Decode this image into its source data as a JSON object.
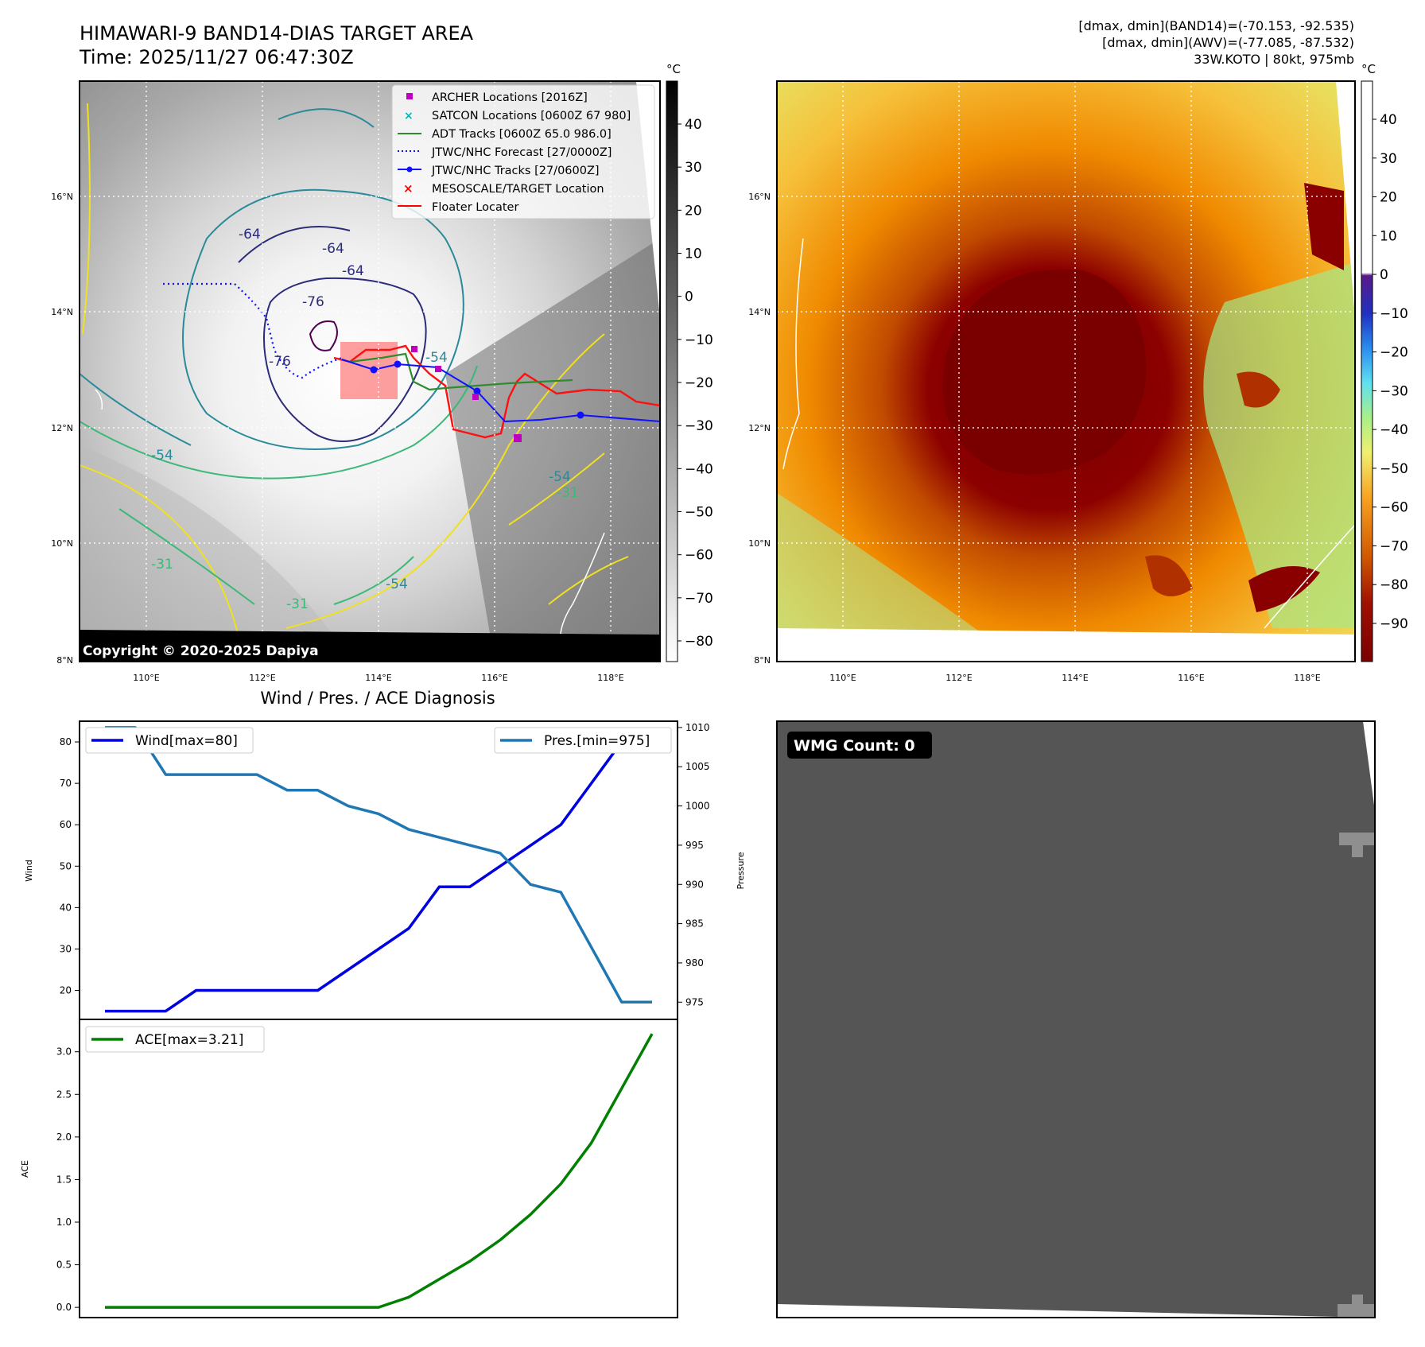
{
  "header": {
    "title": "HIMAWARI-9 BAND14-DIAS TARGET AREA",
    "time": "Time: 2025/11/27 06:47:30Z",
    "info_line1": "[dmax, dmin](BAND14)=(-70.153, -92.535)",
    "info_line2": "[dmax, dmin](AWV)=(-77.085, -87.532)",
    "info_line3": "33W.KOTO | 80kt, 975mb"
  },
  "copyright": "Copyright © 2020-2025 Dapiya",
  "map": {
    "lon_ticks": [
      "110°E",
      "112°E",
      "114°E",
      "116°E",
      "118°E"
    ],
    "lat_ticks": [
      "16°N",
      "14°N",
      "12°N",
      "10°N",
      "8°N"
    ],
    "contour_labels": [
      "-64",
      "-64",
      "-64",
      "-76",
      "-76",
      "-54",
      "-54",
      "-54",
      "-31",
      "-31",
      "-31",
      "-54"
    ],
    "legend": [
      {
        "label": "ARCHER Locations [2016Z]",
        "color": "#c000c0",
        "marker": "square"
      },
      {
        "label": "SATCON Locations [0600Z 67 980]",
        "color": "#00b8b8",
        "marker": "x"
      },
      {
        "label": "ADT Tracks [0600Z 65.0 986.0]",
        "color": "#2e8b2e",
        "marker": "line"
      },
      {
        "label": "JTWC/NHC Forecast [27/0000Z]",
        "color": "#1010ff",
        "marker": "dotted"
      },
      {
        "label": "JTWC/NHC Tracks [27/0600Z]",
        "color": "#1010ff",
        "marker": "line-dot"
      },
      {
        "label": "MESOSCALE/TARGET Location",
        "color": "#ff0000",
        "marker": "x"
      },
      {
        "label": "Floater Locater",
        "color": "#ff0000",
        "marker": "line"
      }
    ]
  },
  "colorbars": {
    "unit": "°C",
    "ir_ticks": [
      "40",
      "30",
      "20",
      "10",
      "0",
      "−10",
      "−20",
      "−30",
      "−40",
      "−50",
      "−60",
      "−70",
      "−80"
    ],
    "awv_ticks": [
      "40",
      "30",
      "20",
      "10",
      "0",
      "−10",
      "−20",
      "−30",
      "−40",
      "−50",
      "−60",
      "−70",
      "−80",
      "−90"
    ]
  },
  "wmg": {
    "label": "WMG Count: 0"
  },
  "chart_data": [
    {
      "type": "line",
      "title": "Wind / Pres. / ACE Diagnosis",
      "x": [
        0,
        1,
        2,
        3,
        4,
        5,
        6,
        7,
        8,
        9,
        10,
        11,
        12,
        13,
        14,
        15,
        16,
        17,
        18
      ],
      "ylabel": "Wind",
      "ylabel2": "Pressure",
      "ylim": [
        13,
        85
      ],
      "ylim2": [
        972.8,
        1010.8
      ],
      "yticks": [
        20,
        30,
        40,
        50,
        60,
        70,
        80
      ],
      "yticks2": [
        975,
        980,
        985,
        990,
        995,
        1000,
        1005,
        1010
      ],
      "series": [
        {
          "name": "Wind[max=80]",
          "color": "#0000e0",
          "axis": "left",
          "values": [
            15,
            15,
            15,
            20,
            20,
            20,
            20,
            20,
            25,
            30,
            35,
            45,
            45,
            50,
            55,
            60,
            70,
            80,
            80
          ]
        },
        {
          "name": "Pres.[min=975]",
          "color": "#1f77b4",
          "axis": "right",
          "values": [
            1010,
            1010,
            1004,
            1004,
            1004,
            1004,
            1002,
            1002,
            1000,
            999,
            997,
            996,
            995,
            994,
            990,
            989,
            982,
            975,
            975
          ]
        }
      ]
    },
    {
      "type": "line",
      "x": [
        0,
        1,
        2,
        3,
        4,
        5,
        6,
        7,
        8,
        9,
        10,
        11,
        12,
        13,
        14,
        15,
        16,
        17,
        18
      ],
      "ylabel": "ACE",
      "ylim": [
        -0.12,
        3.38
      ],
      "yticks": [
        "0.0",
        "0.5",
        "1.0",
        "1.5",
        "2.0",
        "2.5",
        "3.0"
      ],
      "series": [
        {
          "name": "ACE[max=3.21]",
          "color": "#008000",
          "values": [
            0,
            0,
            0,
            0,
            0,
            0,
            0,
            0,
            0,
            0,
            0.12,
            0.33,
            0.54,
            0.79,
            1.09,
            1.45,
            1.93,
            2.57,
            3.21
          ]
        }
      ]
    }
  ]
}
